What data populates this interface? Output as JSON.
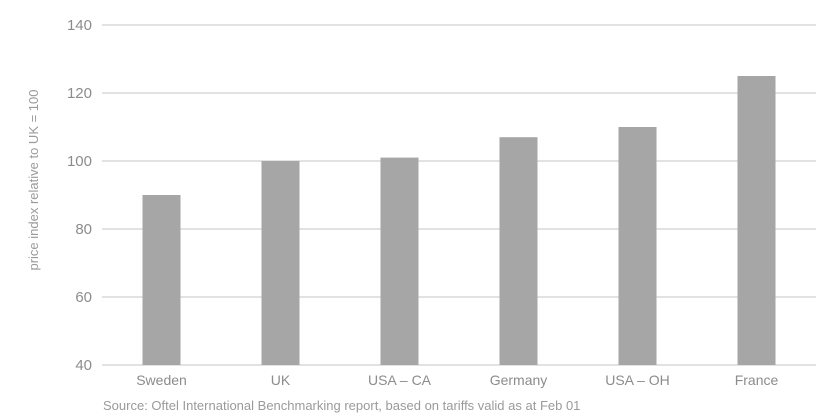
{
  "chart_data": {
    "type": "bar",
    "categories": [
      "Sweden",
      "UK",
      "USA – CA",
      "Germany",
      "USA – OH",
      "France"
    ],
    "values": [
      90,
      100,
      101,
      107,
      110,
      125
    ],
    "title": "",
    "xlabel": "",
    "ylabel": "price index relative to UK = 100",
    "ylim": [
      40,
      140
    ],
    "yticks": [
      40,
      60,
      80,
      100,
      120,
      140
    ],
    "grid": true,
    "legend": "none",
    "bar_color": "#a6a6a6",
    "grid_color": "#d9d9d9",
    "source": "Source: Oftel International Benchmarking report, based on tariffs valid as at Feb 01"
  }
}
